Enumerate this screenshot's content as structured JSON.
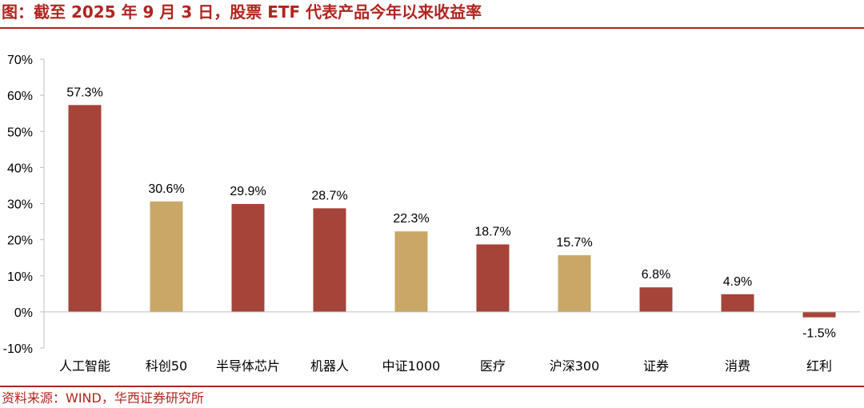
{
  "header": {
    "title": "图：截至 2025 年 9 月 3 日，股票 ETF 代表产品今年以来收益率"
  },
  "footer": {
    "source": "资料来源：WIND，华西证券研究所"
  },
  "colors": {
    "accent": "#b0251f",
    "bar_red": "#a54439",
    "bar_gold": "#c9a766",
    "axis": "#bfbfbf"
  },
  "chart_data": {
    "type": "bar",
    "title": "",
    "xlabel": "",
    "ylabel": "",
    "ylim": [
      -10,
      70
    ],
    "yticks": [
      -10,
      0,
      10,
      20,
      30,
      40,
      50,
      60,
      70
    ],
    "ytick_labels": [
      "-10%",
      "0%",
      "10%",
      "20%",
      "30%",
      "40%",
      "50%",
      "60%",
      "70%"
    ],
    "grid": false,
    "legend": "none",
    "categories": [
      "人工智能",
      "科创50",
      "半导体芯片",
      "机器人",
      "中证1000",
      "医疗",
      "沪深300",
      "证券",
      "消费",
      "红利"
    ],
    "values": [
      57.3,
      30.6,
      29.9,
      28.7,
      22.3,
      18.7,
      15.7,
      6.8,
      4.9,
      -1.5
    ],
    "value_labels": [
      "57.3%",
      "30.6%",
      "29.9%",
      "28.7%",
      "22.3%",
      "18.7%",
      "15.7%",
      "6.8%",
      "4.9%",
      "-1.5%"
    ],
    "bar_colors": [
      "#a54439",
      "#c9a766",
      "#a54439",
      "#a54439",
      "#c9a766",
      "#a54439",
      "#c9a766",
      "#a54439",
      "#a54439",
      "#a54439"
    ]
  }
}
